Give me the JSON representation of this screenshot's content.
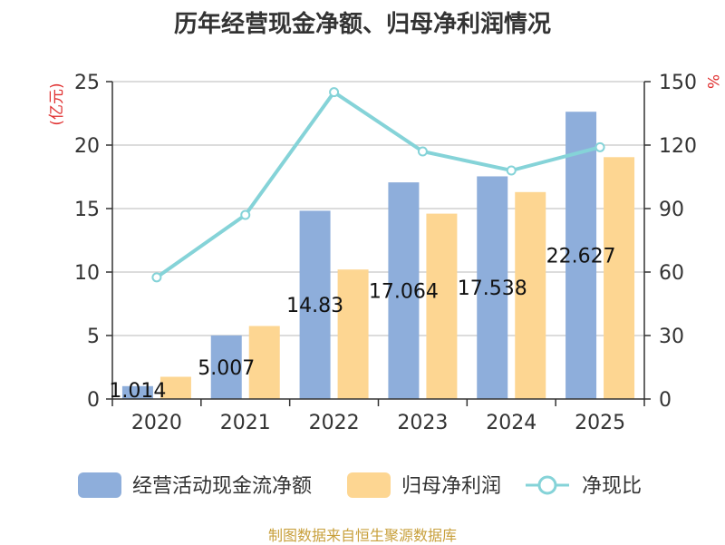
{
  "chart_data": {
    "type": "bar",
    "title": "历年经营现金净额、归母净利润情况",
    "categories": [
      "2020",
      "2021",
      "2022",
      "2023",
      "2024",
      "2025"
    ],
    "y_left": {
      "label": "(亿元)",
      "ticks": [
        "0",
        "5",
        "10",
        "15",
        "20",
        "25"
      ],
      "range": [
        0,
        25
      ]
    },
    "y_right": {
      "label": "%",
      "ticks": [
        "0",
        "30",
        "60",
        "90",
        "120",
        "150"
      ],
      "range": [
        0,
        150
      ]
    },
    "series": [
      {
        "name": "经营活动现金流净额",
        "type": "bar",
        "axis": "left",
        "color": "#8eaedb",
        "values": [
          1.014,
          5.007,
          14.83,
          17.064,
          17.538,
          22.627
        ],
        "data_labels": [
          "1.014",
          "5.007",
          "14.83",
          "17.064",
          "17.538",
          "22.627"
        ]
      },
      {
        "name": "归母净利润",
        "type": "bar",
        "axis": "left",
        "color": "#fdd692",
        "values": [
          1.75,
          5.75,
          10.2,
          14.6,
          16.3,
          19.05
        ]
      },
      {
        "name": "净现比",
        "type": "line",
        "axis": "right",
        "color": "#85d3d8",
        "values": [
          57.5,
          87,
          145,
          117,
          108,
          119
        ]
      }
    ],
    "grid": true,
    "legend_position": "bottom"
  },
  "footer": {
    "source": "制图数据来自恒生聚源数据库",
    "color": "#c8a03c"
  },
  "colors": {
    "axis_label_red": "#e03030",
    "text": "#333333",
    "grid": "#d0d0d0"
  }
}
